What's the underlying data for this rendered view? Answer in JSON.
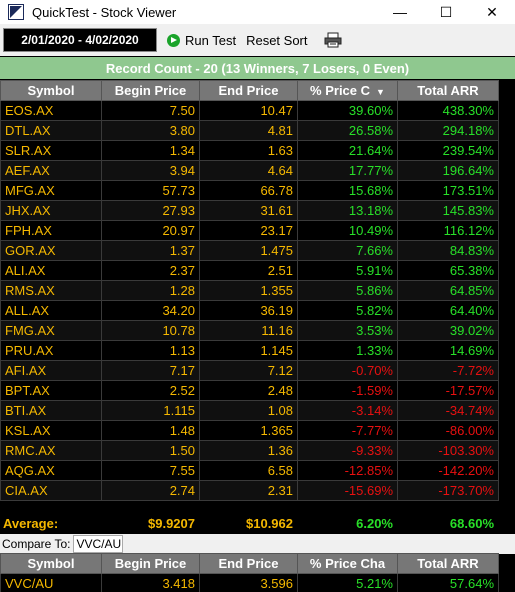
{
  "window": {
    "title": "QuickTest - Stock Viewer",
    "minimize": "—",
    "maximize": "☐",
    "close": "✕"
  },
  "toolbar": {
    "date_range": "2/01/2020 - 4/02/2020",
    "run_test": "Run Test",
    "reset_sort": "Reset Sort",
    "print_icon": "printer-icon"
  },
  "summary": "Record Count - 20 (13 Winners, 7 Losers, 0 Even)",
  "columns": [
    "Symbol",
    "Begin Price",
    "End Price",
    "% Price C",
    "Total ARR"
  ],
  "rows": [
    {
      "symbol": "EOS.AX",
      "begin": "7.50",
      "end": "10.47",
      "pct": "39.60%",
      "arr": "438.30%",
      "dir": "pos"
    },
    {
      "symbol": "DTL.AX",
      "begin": "3.80",
      "end": "4.81",
      "pct": "26.58%",
      "arr": "294.18%",
      "dir": "pos"
    },
    {
      "symbol": "SLR.AX",
      "begin": "1.34",
      "end": "1.63",
      "pct": "21.64%",
      "arr": "239.54%",
      "dir": "pos"
    },
    {
      "symbol": "AEF.AX",
      "begin": "3.94",
      "end": "4.64",
      "pct": "17.77%",
      "arr": "196.64%",
      "dir": "pos"
    },
    {
      "symbol": "MFG.AX",
      "begin": "57.73",
      "end": "66.78",
      "pct": "15.68%",
      "arr": "173.51%",
      "dir": "pos"
    },
    {
      "symbol": "JHX.AX",
      "begin": "27.93",
      "end": "31.61",
      "pct": "13.18%",
      "arr": "145.83%",
      "dir": "pos"
    },
    {
      "symbol": "FPH.AX",
      "begin": "20.97",
      "end": "23.17",
      "pct": "10.49%",
      "arr": "116.12%",
      "dir": "pos"
    },
    {
      "symbol": "GOR.AX",
      "begin": "1.37",
      "end": "1.475",
      "pct": "7.66%",
      "arr": "84.83%",
      "dir": "pos"
    },
    {
      "symbol": "ALI.AX",
      "begin": "2.37",
      "end": "2.51",
      "pct": "5.91%",
      "arr": "65.38%",
      "dir": "pos"
    },
    {
      "symbol": "RMS.AX",
      "begin": "1.28",
      "end": "1.355",
      "pct": "5.86%",
      "arr": "64.85%",
      "dir": "pos"
    },
    {
      "symbol": "ALL.AX",
      "begin": "34.20",
      "end": "36.19",
      "pct": "5.82%",
      "arr": "64.40%",
      "dir": "pos"
    },
    {
      "symbol": "FMG.AX",
      "begin": "10.78",
      "end": "11.16",
      "pct": "3.53%",
      "arr": "39.02%",
      "dir": "pos"
    },
    {
      "symbol": "PRU.AX",
      "begin": "1.13",
      "end": "1.145",
      "pct": "1.33%",
      "arr": "14.69%",
      "dir": "pos"
    },
    {
      "symbol": "AFI.AX",
      "begin": "7.17",
      "end": "7.12",
      "pct": "-0.70%",
      "arr": "-7.72%",
      "dir": "neg"
    },
    {
      "symbol": "BPT.AX",
      "begin": "2.52",
      "end": "2.48",
      "pct": "-1.59%",
      "arr": "-17.57%",
      "dir": "neg"
    },
    {
      "symbol": "BTI.AX",
      "begin": "1.115",
      "end": "1.08",
      "pct": "-3.14%",
      "arr": "-34.74%",
      "dir": "neg"
    },
    {
      "symbol": "KSL.AX",
      "begin": "1.48",
      "end": "1.365",
      "pct": "-7.77%",
      "arr": "-86.00%",
      "dir": "neg"
    },
    {
      "symbol": "RMC.AX",
      "begin": "1.50",
      "end": "1.36",
      "pct": "-9.33%",
      "arr": "-103.30%",
      "dir": "neg"
    },
    {
      "symbol": "AQG.AX",
      "begin": "7.55",
      "end": "6.58",
      "pct": "-12.85%",
      "arr": "-142.20%",
      "dir": "neg"
    },
    {
      "symbol": "CIA.AX",
      "begin": "2.74",
      "end": "2.31",
      "pct": "-15.69%",
      "arr": "-173.70%",
      "dir": "neg"
    }
  ],
  "average": {
    "label": "Average:",
    "begin": "$9.9207",
    "end": "$10.962",
    "pct": "6.20%",
    "arr": "68.60%"
  },
  "compare": {
    "label": "Compare To:",
    "value": "VVC/AU",
    "columns": [
      "Symbol",
      "Begin Price",
      "End Price",
      "% Price Cha",
      "Total ARR"
    ],
    "row": {
      "symbol": "VVC/AU",
      "begin": "3.418",
      "end": "3.596",
      "pct": "5.21%",
      "arr": "57.64%"
    }
  },
  "colors": {
    "gold": "#f5b800",
    "green": "#28e028",
    "red": "#e81010",
    "summary_bg": "#8fc88f",
    "header_bg": "#777777"
  }
}
